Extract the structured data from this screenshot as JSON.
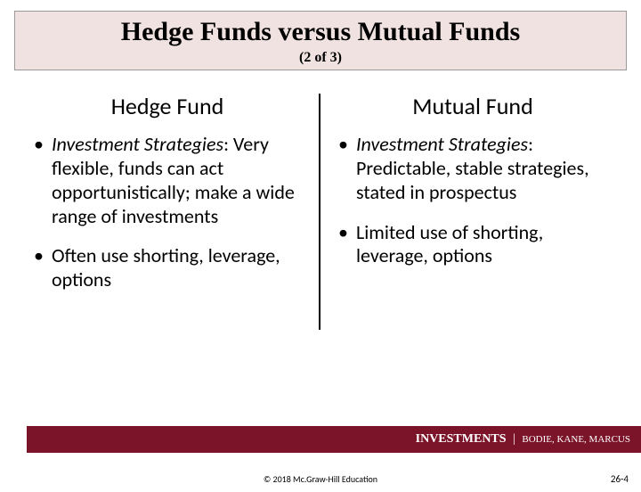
{
  "title": {
    "main": "Hedge Funds versus Mutual Funds",
    "sub": "(2 of 3)"
  },
  "left": {
    "heading": "Hedge Fund",
    "bullets": [
      {
        "lead": "Investment Strategies",
        "rest": ": Very flexible, funds can act opportunistically; make a wide range of investments"
      },
      {
        "lead": "",
        "rest": "Often use shorting, leverage, options"
      }
    ]
  },
  "right": {
    "heading": "Mutual Fund",
    "bullets": [
      {
        "lead": "Investment Strategies",
        "rest": ": Predictable, stable strategies, stated in prospectus"
      },
      {
        "lead": "",
        "rest": "Limited use of shorting, leverage, options"
      }
    ]
  },
  "footer": {
    "brand": "INVESTMENTS",
    "authors": "BODIE, KANE, MARCUS"
  },
  "copyright": "© 2018 Mc.Graw-Hill Education",
  "page": "26-4",
  "colors": {
    "title_bg": "#efe2e1",
    "bar_bg": "#7b1429"
  }
}
